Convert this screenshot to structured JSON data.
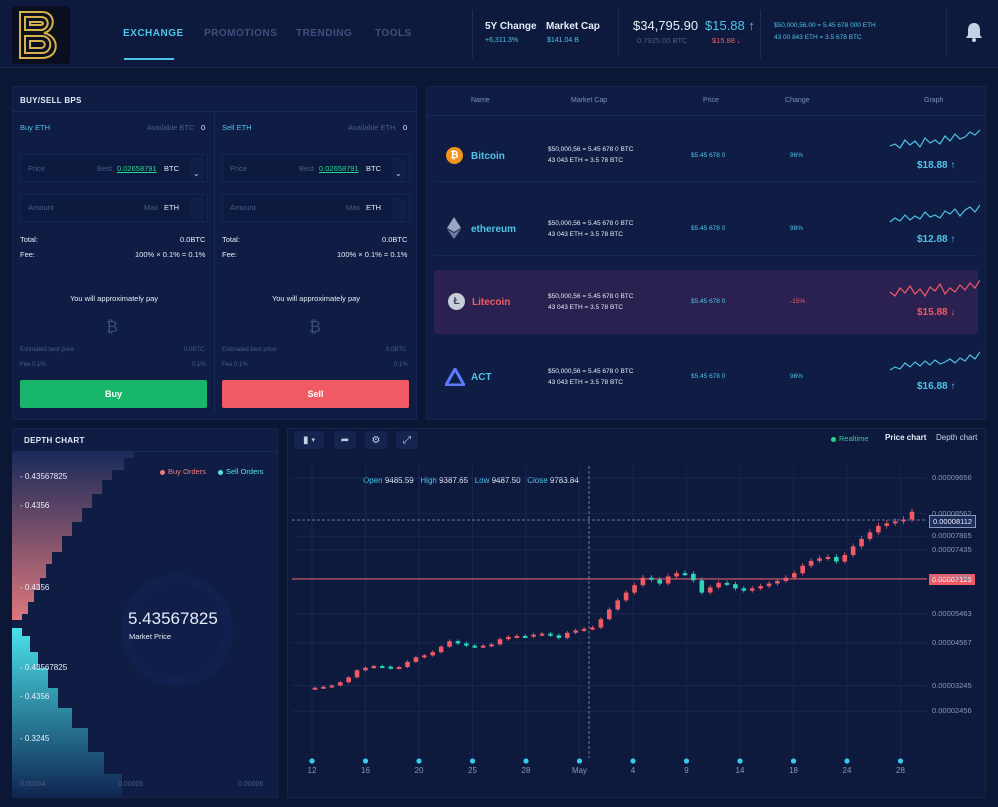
{
  "header": {
    "nav": [
      "EXCHANGE",
      "PROMOTIONS",
      "TRENDING",
      "TOOLS"
    ],
    "change": {
      "label": "5Y Change",
      "value": "+6,311.3%"
    },
    "mcap": {
      "label": "Market Cap",
      "value": "$141.04 B"
    },
    "price_usd": "$34,795.90",
    "price_btc": "0.7925.00 BTC",
    "change_up": "$15.88 ↑",
    "change_down": "$15.88 ↓",
    "line1": "$50,000,56.00 = 5.45 678 000 ETH",
    "line2": "43 00 843 ETH = 3.5 678 BTC",
    "colors": {
      "accent": "#4fc3e8",
      "green": "#29d48f",
      "red": "#ef5a64"
    }
  },
  "buysell": {
    "title": "BUY/SELL BPS",
    "buy": {
      "label": "Buy ETH",
      "available_label": "Available BTC",
      "available_value": "0",
      "price_placeholder": "Price",
      "best_label": "Best",
      "best_value": "0.02658791",
      "best_unit": "BTC",
      "amount_placeholder": "Amount",
      "max_label": "Max",
      "max_unit": "ETH",
      "total_label": "Total:",
      "total_value": "0.0BTC",
      "fee_label": "Fee:",
      "fee_value": "100% × 0.1% = 0.1%",
      "approx_text": "You will approximately pay",
      "est_label": "Estimated best price",
      "est_value": "0.0BTC",
      "fee2_label": "Fee 0.1%",
      "fee2_value": "0.1%",
      "button": "Buy"
    },
    "sell": {
      "label": "Sell ETH",
      "available_label": "Available ETH",
      "available_value": "0",
      "price_placeholder": "Price",
      "best_label": "Best",
      "best_value": "0.02658791",
      "best_unit": "BTC",
      "amount_placeholder": "Amount",
      "max_label": "Max",
      "max_unit": "ETH",
      "total_label": "Total:",
      "total_value": "0.0BTC",
      "fee_label": "Fee:",
      "fee_value": "100% × 0.1% = 0.1%",
      "approx_text": "You will approximately pay",
      "est_label": "Estimated best price",
      "est_value": "0.0BTC",
      "fee2_label": "Fee 0.1%",
      "fee2_value": "0.1%",
      "button": "Sell"
    }
  },
  "market": {
    "headers": [
      "Name",
      "Market Cap",
      "Price",
      "Change",
      "Graph"
    ],
    "rows": [
      {
        "name": "Bitcoin",
        "cap1": "$50,000,56 = 5.45 678 0 BTC",
        "cap2": "43 043 ETH = 3.5 78 BTC",
        "price": "$5.45 678 0",
        "change": "96%",
        "graph_value": "$18.88 ↑",
        "trend": "up"
      },
      {
        "name": "ethereum",
        "cap1": "$50,000,56 = 5.45 678 0 BTC",
        "cap2": "43 043 ETH = 3.5 78 BTC",
        "price": "$5.45 678 0",
        "change": "98%",
        "graph_value": "$12.88 ↑",
        "trend": "up"
      },
      {
        "name": "Litecoin",
        "cap1": "$50,000,56 = 5.45 678 0 BTC",
        "cap2": "43 043 ETH = 3.5 78 BTC",
        "price": "$5.45 678 0",
        "change": "-15%",
        "graph_value": "$15.88 ↓",
        "trend": "down"
      },
      {
        "name": "ACT",
        "cap1": "$50,000,56 = 5.45 678 0 BTC",
        "cap2": "43 043 ETH = 3.5 78 BTC",
        "price": "$5.45 678 0",
        "change": "96%",
        "graph_value": "$16.88 ↑",
        "trend": "up"
      }
    ]
  },
  "depth": {
    "title": "DEPTH CHART",
    "legend_buy": "Buy Orders",
    "legend_sell": "Sell Orders",
    "price": "5.43567825",
    "price_label": "Market Price",
    "ticks": [
      "- 0.43567825",
      "- 0.4356",
      "- 0.4356",
      "- 0.43567825",
      "- 0.4356",
      "- 0.3245"
    ],
    "xticks": [
      "0.00004",
      "0.00005",
      "0.00006"
    ]
  },
  "price_chart": {
    "realtime": "Realtime",
    "tab_price": "Price chart",
    "tab_depth": "Depth chart",
    "ohlc": {
      "open_label": "Open",
      "open": "9485.59",
      "high_label": "High",
      "high": "9387.65",
      "low_label": "Low",
      "low": "9487.50",
      "close_label": "Close",
      "close": "9783.84"
    },
    "current_marker": "0.00008112",
    "red_marker": "0.00007123"
  },
  "chart_data": {
    "type": "candlestick",
    "ylabels": [
      "0.00009656",
      "0.00008562",
      "0.00007865",
      "0.00007435",
      "0.00006562",
      "0.00005463",
      "0.00004567",
      "0.00003245",
      "0.00002456"
    ],
    "xlabels": [
      "12",
      "16",
      "20",
      "25",
      "28",
      "May",
      "4",
      "9",
      "14",
      "18",
      "24",
      "28"
    ],
    "closes": [
      3.18e-05,
      3.21e-05,
      3.25e-05,
      3.35e-05,
      3.5e-05,
      3.72e-05,
      3.8e-05,
      3.85e-05,
      3.83e-05,
      3.78e-05,
      3.82e-05,
      3.98e-05,
      4.12e-05,
      4.18e-05,
      4.28e-05,
      4.45e-05,
      4.62e-05,
      4.55e-05,
      4.48e-05,
      4.45e-05,
      4.48e-05,
      4.52e-05,
      4.68e-05,
      4.75e-05,
      4.78e-05,
      4.76e-05,
      4.82e-05,
      4.85e-05,
      4.8e-05,
      4.72e-05,
      4.88e-05,
      4.95e-05,
      5e-05,
      5.04e-05,
      5.3e-05,
      5.6e-05,
      5.88e-05,
      6.12e-05,
      6.35e-05,
      6.58e-05,
      6.52e-05,
      6.4e-05,
      6.62e-05,
      6.72e-05,
      6.7e-05,
      6.5e-05,
      6.12e-05,
      6.28e-05,
      6.42e-05,
      6.38e-05,
      6.25e-05,
      6.18e-05,
      6.25e-05,
      6.32e-05,
      6.4e-05,
      6.48e-05,
      6.58e-05,
      6.72e-05,
      6.95e-05,
      7.1e-05,
      7.18e-05,
      7.22e-05,
      7.08e-05,
      7.28e-05,
      7.55e-05,
      7.78e-05,
      7.98e-05,
      8.18e-05,
      8.26e-05,
      8.32e-05,
      8.38e-05,
      8.62e-05
    ]
  }
}
